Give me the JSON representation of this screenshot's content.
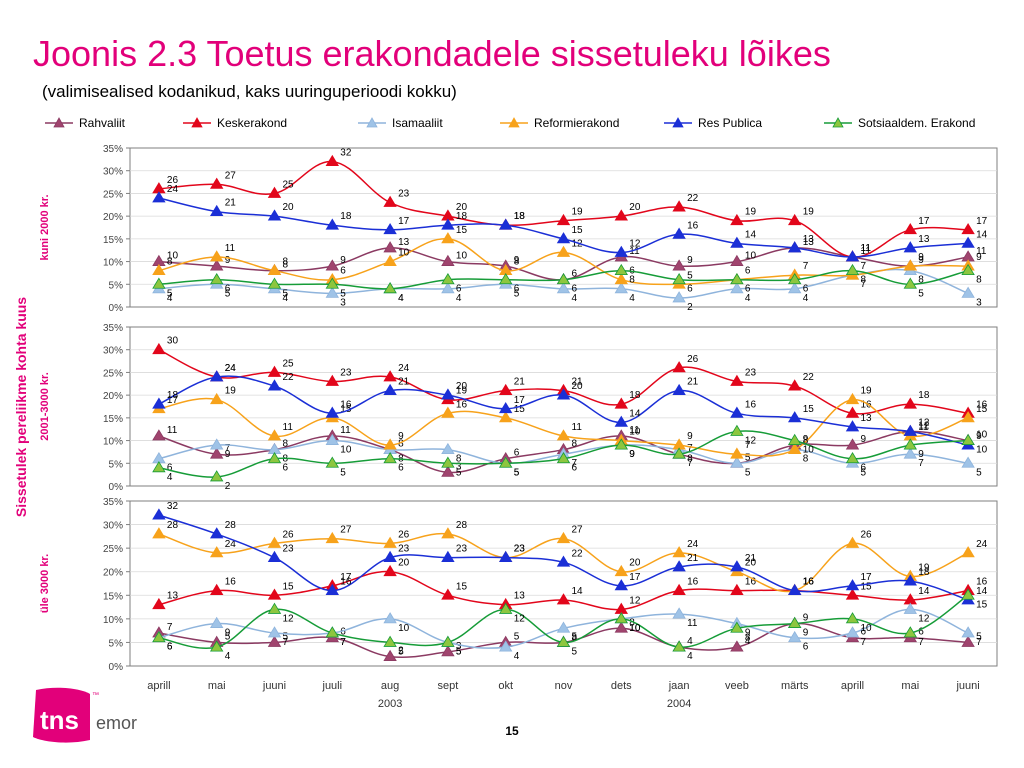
{
  "title": "Joonis 2.3 Toetus erakondadele sissetuleku lõikes",
  "subtitle": "(valimisealised kodanikud, kaks uuringuperioodi kokku)",
  "page_number": "15",
  "logo": {
    "brand": "tns",
    "sub": "emor",
    "tm": "™",
    "color": "#e2007a"
  },
  "chart_data": {
    "type": "line",
    "ylabel": "Sissetulek pereliikme kohta kuus",
    "categories": [
      "aprill",
      "mai",
      "juuni",
      "juuli",
      "aug",
      "sept",
      "okt",
      "nov",
      "dets",
      "jaan",
      "veeb",
      "märts",
      "aprill",
      "mai",
      "juuni"
    ],
    "year_labels": [
      {
        "label": "2003",
        "index": 4
      },
      {
        "label": "2004",
        "index": 9
      }
    ],
    "y_ticks": [
      "0%",
      "5%",
      "10%",
      "15%",
      "20%",
      "25%",
      "30%",
      "35%"
    ],
    "ylim": [
      0,
      35
    ],
    "legend_position": "top",
    "series": [
      {
        "name": "Rahvaliit",
        "color": "#8b3a62",
        "marker_fill": "#a0446e"
      },
      {
        "name": "Keskerakond",
        "color": "#e2061b",
        "marker_fill": "#e2061b"
      },
      {
        "name": "Isamaaliit",
        "color": "#8fb4dc",
        "marker_fill": "#9fc3e7"
      },
      {
        "name": "Reformierakond",
        "color": "#f7a21b",
        "marker_fill": "#f7a21b"
      },
      {
        "name": "Res Publica",
        "color": "#1b2fd6",
        "marker_fill": "#1b2fd6"
      },
      {
        "name": "Sotsiaaldem. Erakond",
        "color": "#169c38",
        "marker_fill": "#8dc63f"
      }
    ],
    "panels": [
      {
        "label": "kuni 2000 kr.",
        "values": [
          [
            10,
            9,
            8,
            9,
            13,
            10,
            9,
            6,
            11,
            9,
            10,
            13,
            11,
            9,
            11
          ],
          [
            26,
            27,
            25,
            32,
            23,
            20,
            18,
            19,
            20,
            22,
            19,
            19,
            11,
            17,
            17
          ],
          [
            4,
            5,
            4,
            3,
            4,
            4,
            5,
            4,
            4,
            2,
            4,
            4,
            7,
            8,
            3
          ],
          [
            8,
            11,
            8,
            6,
            10,
            15,
            8,
            12,
            6,
            5,
            6,
            7,
            7,
            9,
            9
          ],
          [
            24,
            21,
            20,
            18,
            17,
            18,
            18,
            15,
            12,
            16,
            14,
            13,
            11,
            13,
            14
          ],
          [
            5,
            6,
            5,
            5,
            4,
            6,
            6,
            6,
            8,
            6,
            6,
            6,
            8,
            5,
            8
          ]
        ]
      },
      {
        "label": "2001-3000 kr.",
        "values": [
          [
            11,
            7,
            8,
            11,
            8,
            3,
            6,
            8,
            11,
            7,
            5,
            9,
            9,
            12,
            10
          ],
          [
            30,
            24,
            25,
            23,
            24,
            19,
            21,
            21,
            18,
            26,
            23,
            22,
            16,
            18,
            16
          ],
          [
            6,
            9,
            8,
            10,
            8,
            8,
            5,
            7,
            9,
            8,
            5,
            8,
            5,
            7,
            5
          ],
          [
            17,
            19,
            11,
            15,
            9,
            16,
            15,
            11,
            10,
            9,
            7,
            8,
            19,
            11,
            15
          ],
          [
            18,
            24,
            22,
            16,
            21,
            20,
            17,
            20,
            14,
            21,
            16,
            15,
            13,
            12,
            9
          ],
          [
            4,
            2,
            6,
            5,
            6,
            5,
            5,
            6,
            9,
            7,
            12,
            10,
            6,
            9,
            10
          ]
        ]
      },
      {
        "label": "üle 3000 kr.",
        "values": [
          [
            7,
            5,
            5,
            6,
            2,
            3,
            5,
            5,
            8,
            4,
            4,
            9,
            6,
            6,
            5
          ],
          [
            13,
            16,
            15,
            17,
            20,
            15,
            13,
            14,
            12,
            16,
            16,
            16,
            15,
            14,
            16
          ],
          [
            6,
            9,
            7,
            7,
            10,
            5,
            4,
            8,
            10,
            11,
            9,
            6,
            7,
            12,
            7
          ],
          [
            28,
            24,
            26,
            27,
            26,
            28,
            23,
            27,
            20,
            24,
            20,
            16,
            26,
            19,
            24
          ],
          [
            32,
            28,
            23,
            16,
            23,
            23,
            23,
            22,
            17,
            21,
            21,
            16,
            17,
            18,
            14
          ],
          [
            6,
            4,
            12,
            7,
            5,
            5,
            12,
            5,
            10,
            4,
            8,
            9,
            10,
            7,
            15
          ]
        ]
      }
    ]
  }
}
